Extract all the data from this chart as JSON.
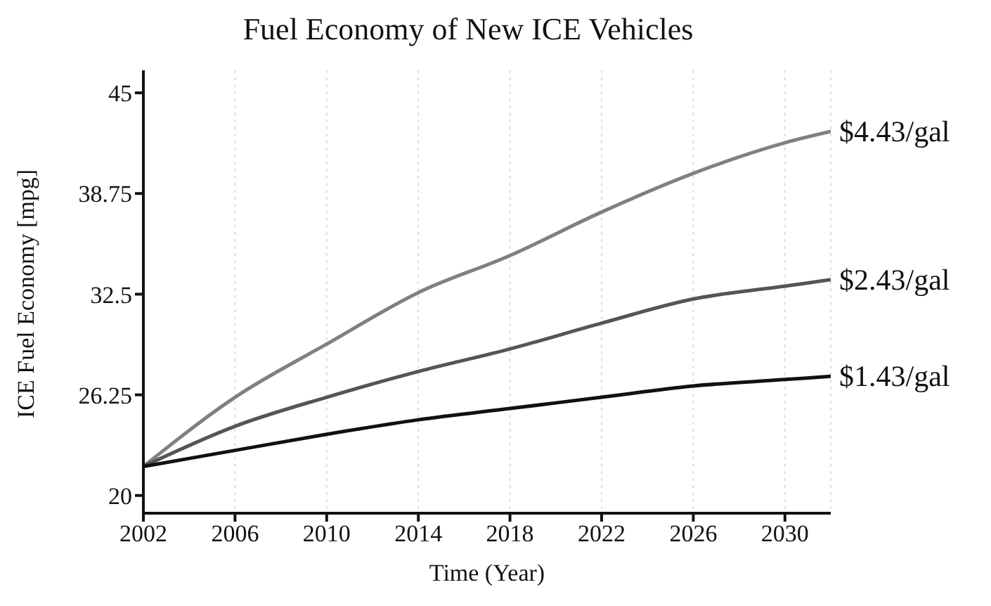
{
  "chart_data": {
    "type": "line",
    "title": "Fuel Economy of New ICE Vehicles",
    "xlabel": "Time (Year)",
    "ylabel": "ICE Fuel Economy [mpg]",
    "x": [
      2002,
      2006,
      2010,
      2014,
      2018,
      2022,
      2026,
      2030,
      2032
    ],
    "series": [
      {
        "name": "$4.43/gal",
        "color": "#808080",
        "values": [
          21.8,
          26.1,
          29.4,
          32.6,
          34.9,
          37.6,
          40.0,
          41.9,
          42.6
        ]
      },
      {
        "name": "$2.43/gal",
        "color": "#555555",
        "values": [
          21.8,
          24.3,
          26.1,
          27.7,
          29.1,
          30.7,
          32.2,
          33.0,
          33.4
        ]
      },
      {
        "name": "$1.43/gal",
        "color": "#111111",
        "values": [
          21.8,
          22.8,
          23.8,
          24.7,
          25.4,
          26.1,
          26.8,
          27.2,
          27.4
        ]
      }
    ],
    "xlim": [
      2002,
      2032
    ],
    "xticks": [
      2002,
      2006,
      2010,
      2014,
      2018,
      2022,
      2026,
      2030
    ],
    "ylim": [
      18.9,
      46.4
    ],
    "yticks": [
      20,
      26.25,
      32.5,
      38.75,
      45
    ],
    "grid": "x",
    "marker": "none",
    "line_style": "solid"
  }
}
